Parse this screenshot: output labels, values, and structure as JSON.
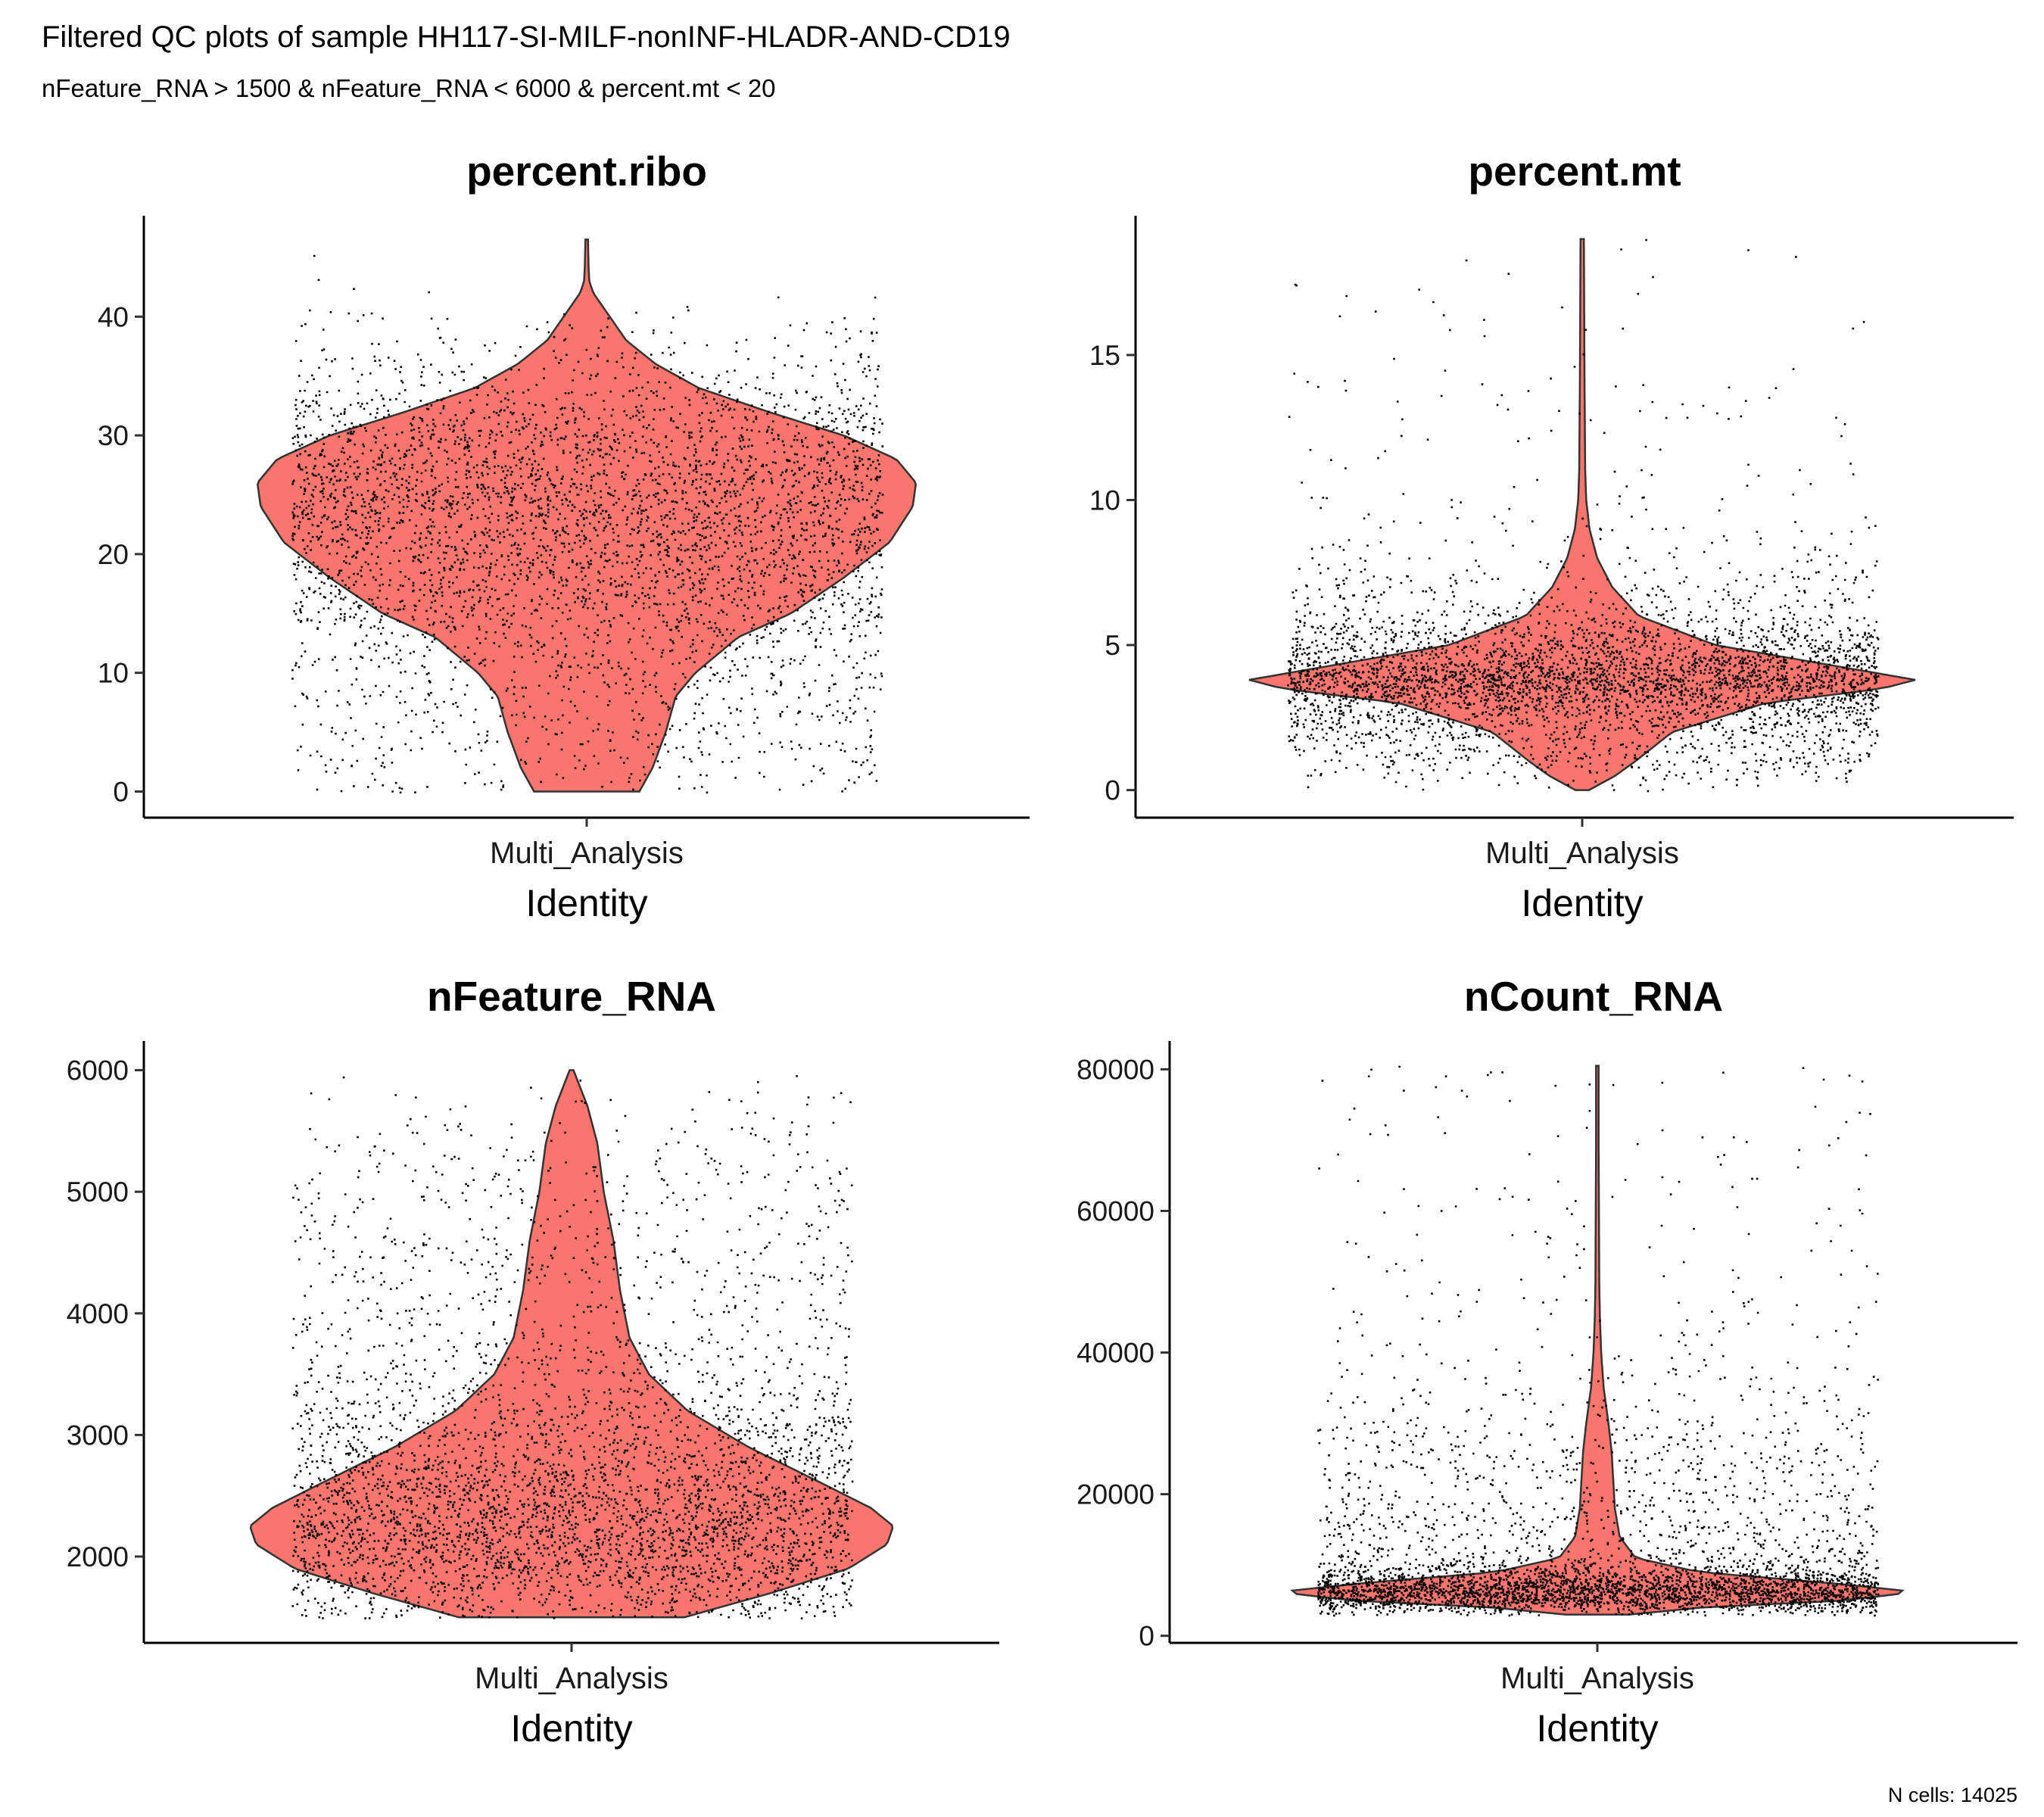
{
  "title": "Filtered QC plots of sample HH117-SI-MILF-nonINF-HLADR-AND-CD19",
  "subtitle": "nFeature_RNA > 1500 & nFeature_RNA < 6000 & percent.mt < 20",
  "caption": "N cells: 14025",
  "colors": {
    "violin_fill": "#F8766D",
    "violin_stroke": "#333333",
    "points": "#000000"
  },
  "chart_data": [
    {
      "type": "violin",
      "title": "percent.ribo",
      "category": "Multi_Analysis",
      "xlabel": "Identity",
      "ylabel": "",
      "ylim": [
        -2.2,
        48.5
      ],
      "yticks": [
        0,
        10,
        20,
        30,
        40
      ],
      "min": 0,
      "max": 46.5,
      "density_profile": [
        [
          0,
          0.16
        ],
        [
          2,
          0.2
        ],
        [
          5,
          0.24
        ],
        [
          8,
          0.27
        ],
        [
          10,
          0.33
        ],
        [
          13,
          0.46
        ],
        [
          15,
          0.62
        ],
        [
          18,
          0.78
        ],
        [
          21,
          0.92
        ],
        [
          24,
          0.99
        ],
        [
          26,
          1.0
        ],
        [
          28,
          0.94
        ],
        [
          30,
          0.78
        ],
        [
          32,
          0.55
        ],
        [
          34,
          0.34
        ],
        [
          36,
          0.21
        ],
        [
          38,
          0.12
        ],
        [
          40,
          0.07
        ],
        [
          41,
          0.045
        ],
        [
          42,
          0.02
        ],
        [
          43,
          0.008
        ],
        [
          44,
          0.006
        ],
        [
          46.5,
          0.004
        ]
      ],
      "jitter_points": 4200
    },
    {
      "type": "violin",
      "title": "percent.mt",
      "category": "Multi_Analysis",
      "xlabel": "Identity",
      "ylabel": "",
      "ylim": [
        -0.95,
        19.8
      ],
      "yticks": [
        0,
        5,
        10,
        15
      ],
      "min": 0,
      "max": 19,
      "density_profile": [
        [
          0,
          0.02
        ],
        [
          0.5,
          0.1
        ],
        [
          1,
          0.16
        ],
        [
          2,
          0.27
        ],
        [
          3,
          0.55
        ],
        [
          3.5,
          0.9
        ],
        [
          3.8,
          1.0
        ],
        [
          4.2,
          0.8
        ],
        [
          5,
          0.4
        ],
        [
          6,
          0.17
        ],
        [
          7,
          0.09
        ],
        [
          8,
          0.045
        ],
        [
          9,
          0.022
        ],
        [
          10,
          0.012
        ],
        [
          11,
          0.009
        ],
        [
          14,
          0.007
        ],
        [
          19,
          0.005
        ]
      ],
      "jitter_points": 4200
    },
    {
      "type": "violin",
      "title": "nFeature_RNA",
      "category": "Multi_Analysis",
      "xlabel": "Identity",
      "ylabel": "",
      "ylim": [
        1290,
        6240
      ],
      "yticks": [
        2000,
        3000,
        4000,
        5000,
        6000
      ],
      "min": 1500,
      "max": 6000,
      "density_profile": [
        [
          1500,
          0.35
        ],
        [
          1700,
          0.62
        ],
        [
          1900,
          0.86
        ],
        [
          2100,
          0.98
        ],
        [
          2250,
          1.0
        ],
        [
          2400,
          0.93
        ],
        [
          2600,
          0.78
        ],
        [
          2900,
          0.55
        ],
        [
          3200,
          0.36
        ],
        [
          3500,
          0.24
        ],
        [
          3800,
          0.18
        ],
        [
          4200,
          0.15
        ],
        [
          4600,
          0.13
        ],
        [
          5000,
          0.1
        ],
        [
          5400,
          0.08
        ],
        [
          5700,
          0.05
        ],
        [
          6000,
          0.006
        ]
      ],
      "jitter_points": 4200
    },
    {
      "type": "violin",
      "title": "nCount_RNA",
      "category": "Multi_Analysis",
      "xlabel": "Identity",
      "ylabel": "",
      "ylim": [
        -1000,
        84000
      ],
      "yticks": [
        0,
        20000,
        40000,
        60000,
        80000
      ],
      "min": 3000,
      "max": 80500,
      "density_profile": [
        [
          3000,
          0.1
        ],
        [
          4000,
          0.33
        ],
        [
          5000,
          0.78
        ],
        [
          6200,
          1.0
        ],
        [
          7500,
          0.72
        ],
        [
          9000,
          0.32
        ],
        [
          11000,
          0.12
        ],
        [
          14000,
          0.07
        ],
        [
          18000,
          0.055
        ],
        [
          22000,
          0.05
        ],
        [
          26000,
          0.045
        ],
        [
          30000,
          0.035
        ],
        [
          35000,
          0.02
        ],
        [
          40000,
          0.012
        ],
        [
          45000,
          0.008
        ],
        [
          50000,
          0.006
        ],
        [
          60000,
          0.005
        ],
        [
          70000,
          0.004
        ],
        [
          80500,
          0.004
        ]
      ],
      "jitter_points": 4200
    }
  ]
}
